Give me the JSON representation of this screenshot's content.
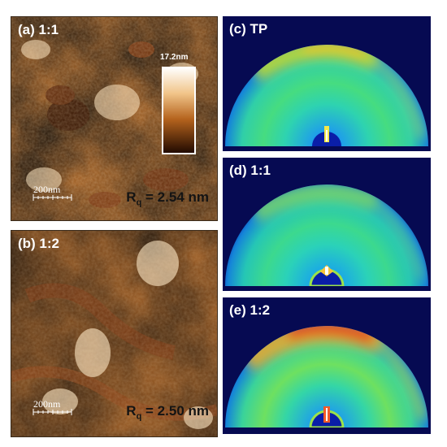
{
  "panels": {
    "a": {
      "label": "(a) 1:1",
      "scalebar": "200nm",
      "rq_sym": "R",
      "rq_sub": "q",
      "rq_val": " = 2.54 nm",
      "colorbar_max": "17.2nm"
    },
    "b": {
      "label": "(b) 1:2",
      "scalebar": "200nm",
      "rq_sym": "R",
      "rq_sub": "q",
      "rq_val": " = 2.50 nm"
    },
    "c": {
      "label": "(c) TP"
    },
    "d": {
      "label": "(d) 1:1"
    },
    "e": {
      "label": "(e) 1:2"
    }
  },
  "colors": {
    "afm_dark": "#2b1100",
    "afm_mid": "#b5631d",
    "afm_light": "#f7d7a6",
    "gi_background": "#060a52"
  }
}
